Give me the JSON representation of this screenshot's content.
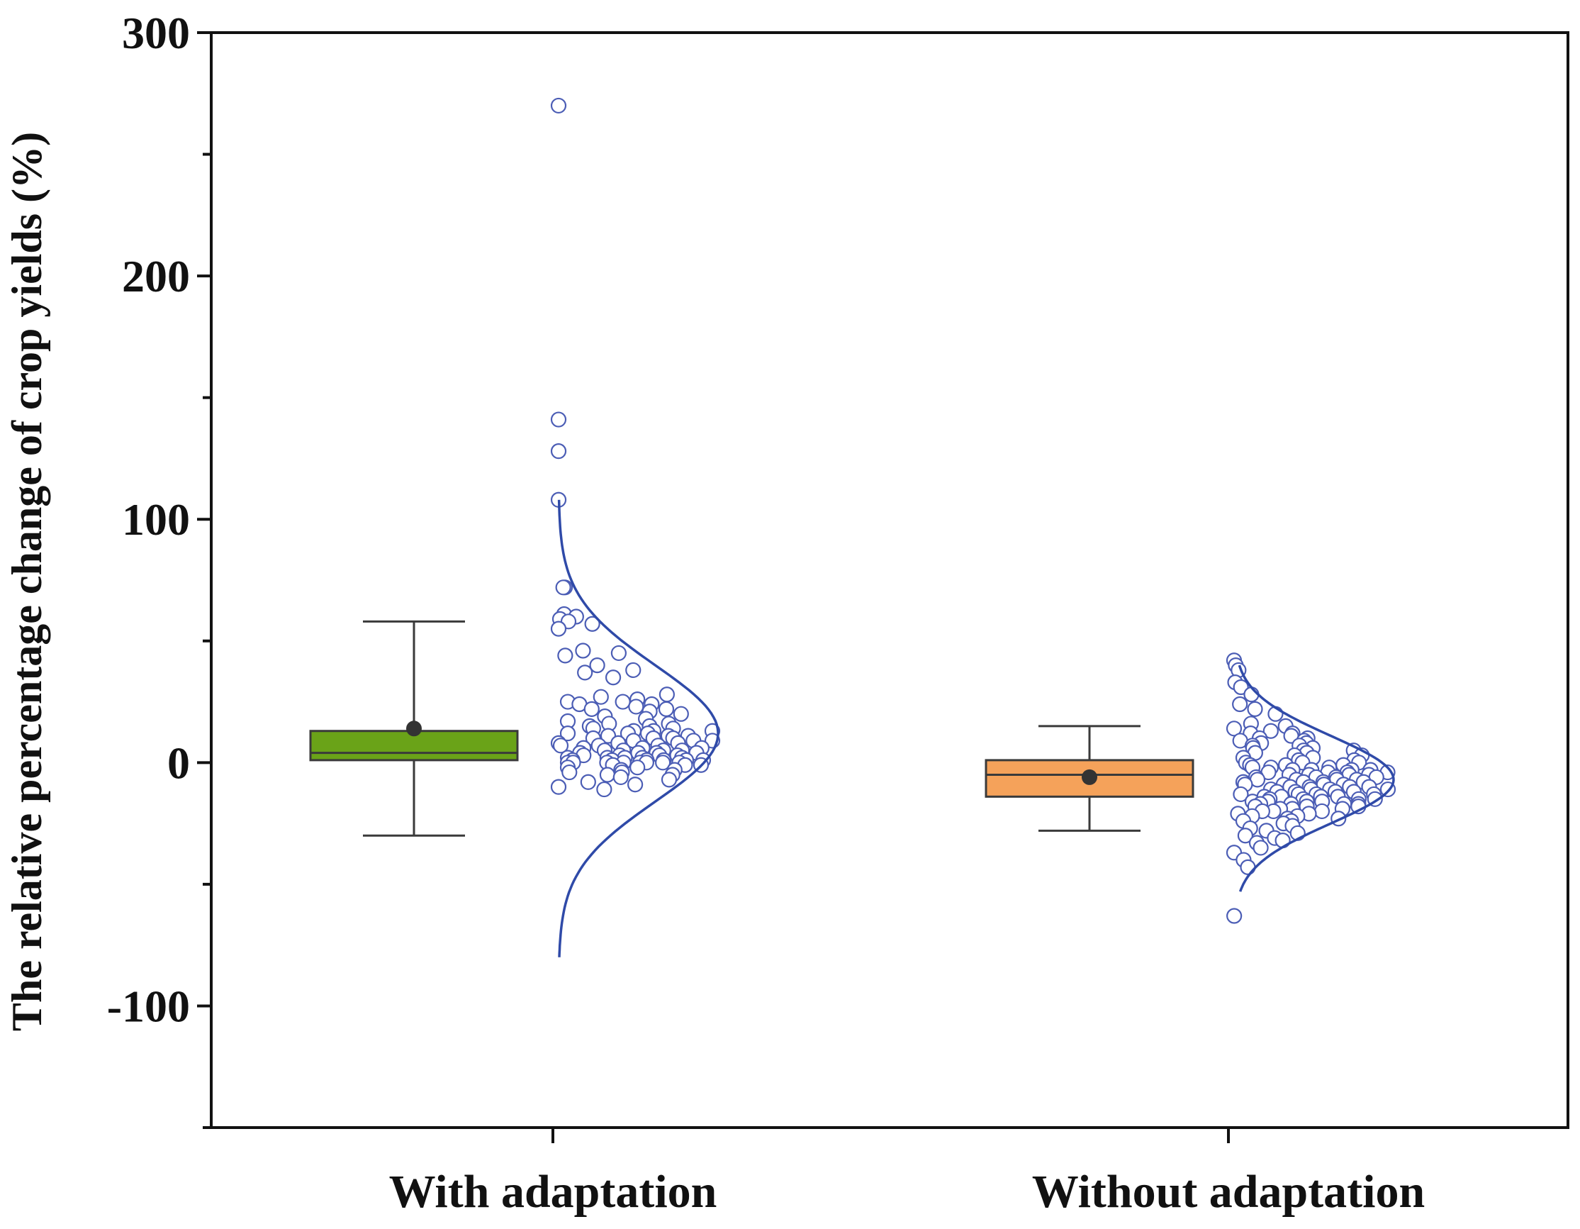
{
  "chart_data": {
    "type": "box",
    "title": "",
    "xlabel": "",
    "ylabel": "The relative percentage change of  crop yields (%)",
    "ylim": [
      -150,
      300
    ],
    "yticks": [
      -100,
      0,
      100,
      200,
      300
    ],
    "ytick_labels": [
      "-100",
      "0",
      "100",
      "200",
      "300"
    ],
    "grid": false,
    "legend": "none",
    "categories": [
      "With adaptation",
      "Without adaptation"
    ],
    "series": [
      {
        "name": "With adaptation",
        "box_color": "#6aa318",
        "whisker_low": -30,
        "q1": 1,
        "median": 4,
        "q3": 13,
        "whisker_high": 58,
        "mean": 14,
        "curve": {
          "mean": 12,
          "sd": 28,
          "min": -80,
          "max": 108
        },
        "points": [
          270,
          141,
          128,
          108,
          72,
          72,
          61,
          60,
          59,
          58,
          57,
          55,
          46,
          45,
          44,
          40,
          38,
          37,
          35,
          28,
          27,
          26,
          25,
          25,
          24,
          24,
          23,
          22,
          22,
          21,
          20,
          19,
          18,
          17,
          16,
          16,
          15,
          15,
          14,
          14,
          13,
          13,
          13,
          12,
          12,
          12,
          11,
          11,
          11,
          10,
          10,
          10,
          9,
          9,
          9,
          8,
          8,
          8,
          7,
          7,
          7,
          6,
          6,
          6,
          5,
          5,
          5,
          5,
          4,
          4,
          4,
          4,
          3,
          3,
          3,
          3,
          2,
          2,
          2,
          2,
          2,
          1,
          1,
          1,
          1,
          1,
          1,
          0,
          0,
          0,
          0,
          0,
          0,
          0,
          0,
          -1,
          -1,
          -1,
          -2,
          -2,
          -3,
          -3,
          -4,
          -4,
          -5,
          -5,
          -6,
          -7,
          -8,
          -9,
          -10,
          -11
        ]
      },
      {
        "name": "Without adaptation",
        "box_color": "#f5a25a",
        "whisker_low": -28,
        "q1": -14,
        "median": -5,
        "q3": 1,
        "whisker_high": 15,
        "mean": -6,
        "curve": {
          "mean": -7,
          "sd": 18,
          "min": -53,
          "max": 40
        },
        "points": [
          42,
          40,
          38,
          33,
          31,
          28,
          24,
          22,
          20,
          16,
          15,
          14,
          13,
          12,
          12,
          11,
          10,
          10,
          9,
          9,
          8,
          8,
          7,
          7,
          6,
          6,
          5,
          5,
          4,
          4,
          3,
          3,
          2,
          2,
          1,
          1,
          0,
          0,
          0,
          -1,
          -1,
          -1,
          -2,
          -2,
          -2,
          -3,
          -3,
          -3,
          -3,
          -4,
          -4,
          -4,
          -4,
          -5,
          -5,
          -5,
          -5,
          -6,
          -6,
          -6,
          -6,
          -7,
          -7,
          -7,
          -7,
          -8,
          -8,
          -8,
          -8,
          -9,
          -9,
          -9,
          -9,
          -10,
          -10,
          -10,
          -10,
          -11,
          -11,
          -11,
          -11,
          -12,
          -12,
          -12,
          -12,
          -13,
          -13,
          -13,
          -13,
          -14,
          -14,
          -14,
          -14,
          -15,
          -15,
          -15,
          -15,
          -16,
          -16,
          -16,
          -16,
          -17,
          -17,
          -17,
          -17,
          -18,
          -18,
          -18,
          -19,
          -19,
          -19,
          -20,
          -20,
          -20,
          -21,
          -21,
          -22,
          -22,
          -23,
          -23,
          -24,
          -24,
          -25,
          -26,
          -27,
          -28,
          -29,
          -30,
          -31,
          -32,
          -33,
          -35,
          -37,
          -40,
          -43,
          -63
        ]
      }
    ],
    "point_color": "#4b5db5",
    "curve_color": "#2f4aa8",
    "mean_marker_color": "#333333",
    "axis_color": "#111111"
  }
}
